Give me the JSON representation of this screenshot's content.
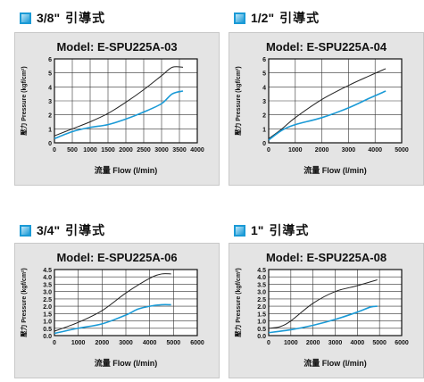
{
  "panels": [
    {
      "size": "3/8\"",
      "type_label": "引導式"
    },
    {
      "size": "1/2\"",
      "type_label": "引導式"
    },
    {
      "size": "3/4\"",
      "type_label": "引導式"
    },
    {
      "size": "1\"",
      "type_label": "引導式"
    }
  ],
  "chart_data": [
    {
      "type": "line",
      "title": "Model: E-SPU225A-03",
      "xlabel": "流量 Flow (l/min)",
      "ylabel": "壓力 Pressure (kgf/cm²)",
      "xlim": [
        0,
        4000
      ],
      "ylim": [
        0,
        6
      ],
      "xticks": [
        0,
        500,
        1000,
        1500,
        2000,
        2500,
        3000,
        3500,
        4000
      ],
      "yticks": [
        0,
        1,
        2,
        3,
        4,
        5,
        6
      ],
      "grid": true,
      "series": [
        {
          "color": "#222222",
          "x": [
            0,
            500,
            1000,
            1500,
            2000,
            2500,
            3000,
            3300,
            3600
          ],
          "y": [
            0.5,
            1.0,
            1.5,
            2.1,
            2.9,
            3.8,
            4.8,
            5.4,
            5.4
          ]
        },
        {
          "color": "#1a9ad6",
          "x": [
            0,
            500,
            1000,
            1500,
            2000,
            2500,
            3000,
            3300,
            3600
          ],
          "y": [
            0.3,
            0.8,
            1.1,
            1.3,
            1.7,
            2.2,
            2.8,
            3.5,
            3.7
          ]
        }
      ]
    },
    {
      "type": "line",
      "title": "Model: E-SPU225A-04",
      "xlabel": "流量 Flow (l/min)",
      "ylabel": "壓力 Pressure (kgf/cm²)",
      "xlim": [
        0,
        5000
      ],
      "ylim": [
        0,
        6
      ],
      "xticks": [
        0,
        1000,
        2000,
        3000,
        4000,
        5000
      ],
      "yticks": [
        0,
        1,
        2,
        3,
        4,
        5,
        6
      ],
      "grid": true,
      "series": [
        {
          "color": "#222222",
          "x": [
            0,
            500,
            1000,
            2000,
            3000,
            3800,
            4400
          ],
          "y": [
            0.3,
            1.0,
            1.8,
            3.1,
            4.1,
            4.8,
            5.3
          ]
        },
        {
          "color": "#1a9ad6",
          "x": [
            0,
            500,
            1000,
            2000,
            3000,
            3800,
            4400
          ],
          "y": [
            0.2,
            0.9,
            1.3,
            1.8,
            2.5,
            3.2,
            3.7
          ]
        }
      ]
    },
    {
      "type": "line",
      "title": "Model: E-SPU225A-06",
      "xlabel": "流量 Flow (l/min)",
      "ylabel": "壓力 Pressure (kgf/cm²)",
      "xlim": [
        0,
        6000
      ],
      "ylim": [
        0,
        4.5
      ],
      "xticks": [
        0,
        1000,
        2000,
        3000,
        4000,
        5000,
        6000
      ],
      "yticks": [
        0,
        0.5,
        1.0,
        1.5,
        2.0,
        2.5,
        3.0,
        3.5,
        4.0,
        4.5
      ],
      "grid": true,
      "series": [
        {
          "color": "#222222",
          "x": [
            0,
            1000,
            2000,
            3000,
            4000,
            4500,
            4900
          ],
          "y": [
            0.3,
            0.9,
            1.7,
            2.9,
            3.9,
            4.2,
            4.2
          ]
        },
        {
          "color": "#1a9ad6",
          "x": [
            0,
            1000,
            2000,
            3000,
            3500,
            4000,
            4500,
            4900
          ],
          "y": [
            0.15,
            0.5,
            0.8,
            1.4,
            1.8,
            2.0,
            2.1,
            2.1
          ]
        }
      ]
    },
    {
      "type": "line",
      "title": "Model: E-SPU225A-08",
      "xlabel": "流量 Flow (l/min)",
      "ylabel": "壓力 Pressure (kgf/cm²)",
      "xlim": [
        0,
        6000
      ],
      "ylim": [
        0,
        4.5
      ],
      "xticks": [
        0,
        1000,
        2000,
        3000,
        4000,
        5000,
        6000
      ],
      "yticks": [
        0,
        0.5,
        1.0,
        1.5,
        2.0,
        2.5,
        3.0,
        3.5,
        4.0,
        4.5
      ],
      "grid": true,
      "series": [
        {
          "color": "#222222",
          "x": [
            0,
            500,
            1000,
            2000,
            3000,
            4000,
            4900
          ],
          "y": [
            0.5,
            0.6,
            1.0,
            2.2,
            3.0,
            3.4,
            3.8
          ]
        },
        {
          "color": "#1a9ad6",
          "x": [
            0,
            1000,
            2000,
            3000,
            4000,
            4600,
            4900
          ],
          "y": [
            0.2,
            0.4,
            0.7,
            1.1,
            1.6,
            1.95,
            2.0
          ]
        }
      ]
    }
  ]
}
